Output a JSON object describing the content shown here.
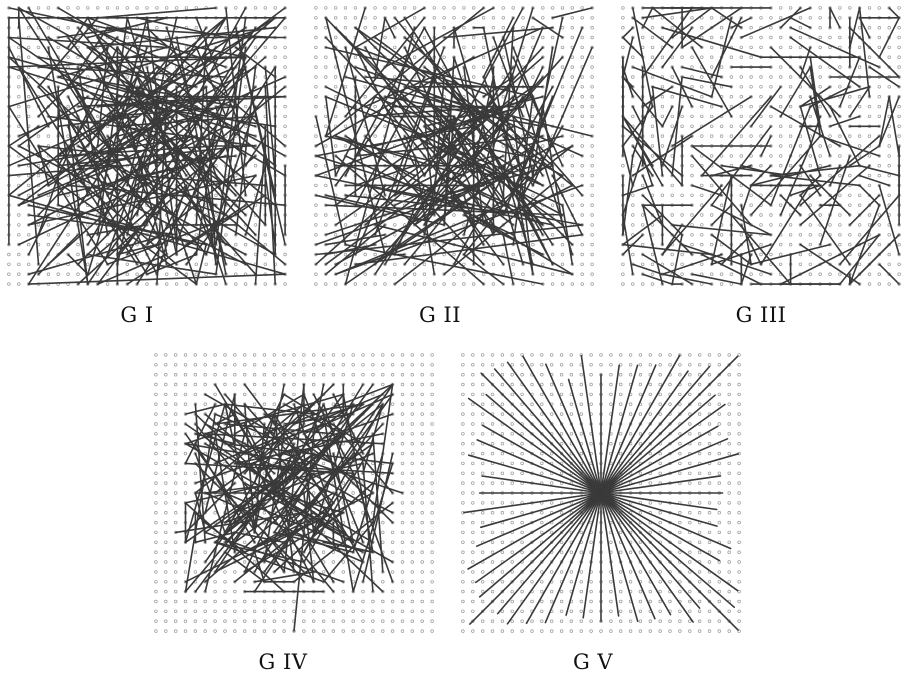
{
  "figure": {
    "panels": [
      {
        "id": "g1",
        "label": "G I",
        "pattern": "random-chords",
        "seed": 11,
        "lines": 230,
        "frame": true
      },
      {
        "id": "g2",
        "label": "G II",
        "pattern": "random-chords-dense-right",
        "seed": 23,
        "lines": 200,
        "frame": false
      },
      {
        "id": "g3",
        "label": "G III",
        "pattern": "short-random-segments",
        "seed": 37,
        "lines": 190,
        "frame": false
      },
      {
        "id": "g4",
        "label": "G IV",
        "pattern": "central-polygon-chords",
        "seed": 53,
        "lines": 170,
        "frame": false
      },
      {
        "id": "g5",
        "label": "G V",
        "pattern": "star-from-center",
        "seed": 71,
        "lines": 48,
        "frame": false
      }
    ],
    "colors": {
      "line": "#3a3a3a",
      "dot": "#9a9a9a",
      "label": "#111111"
    }
  }
}
